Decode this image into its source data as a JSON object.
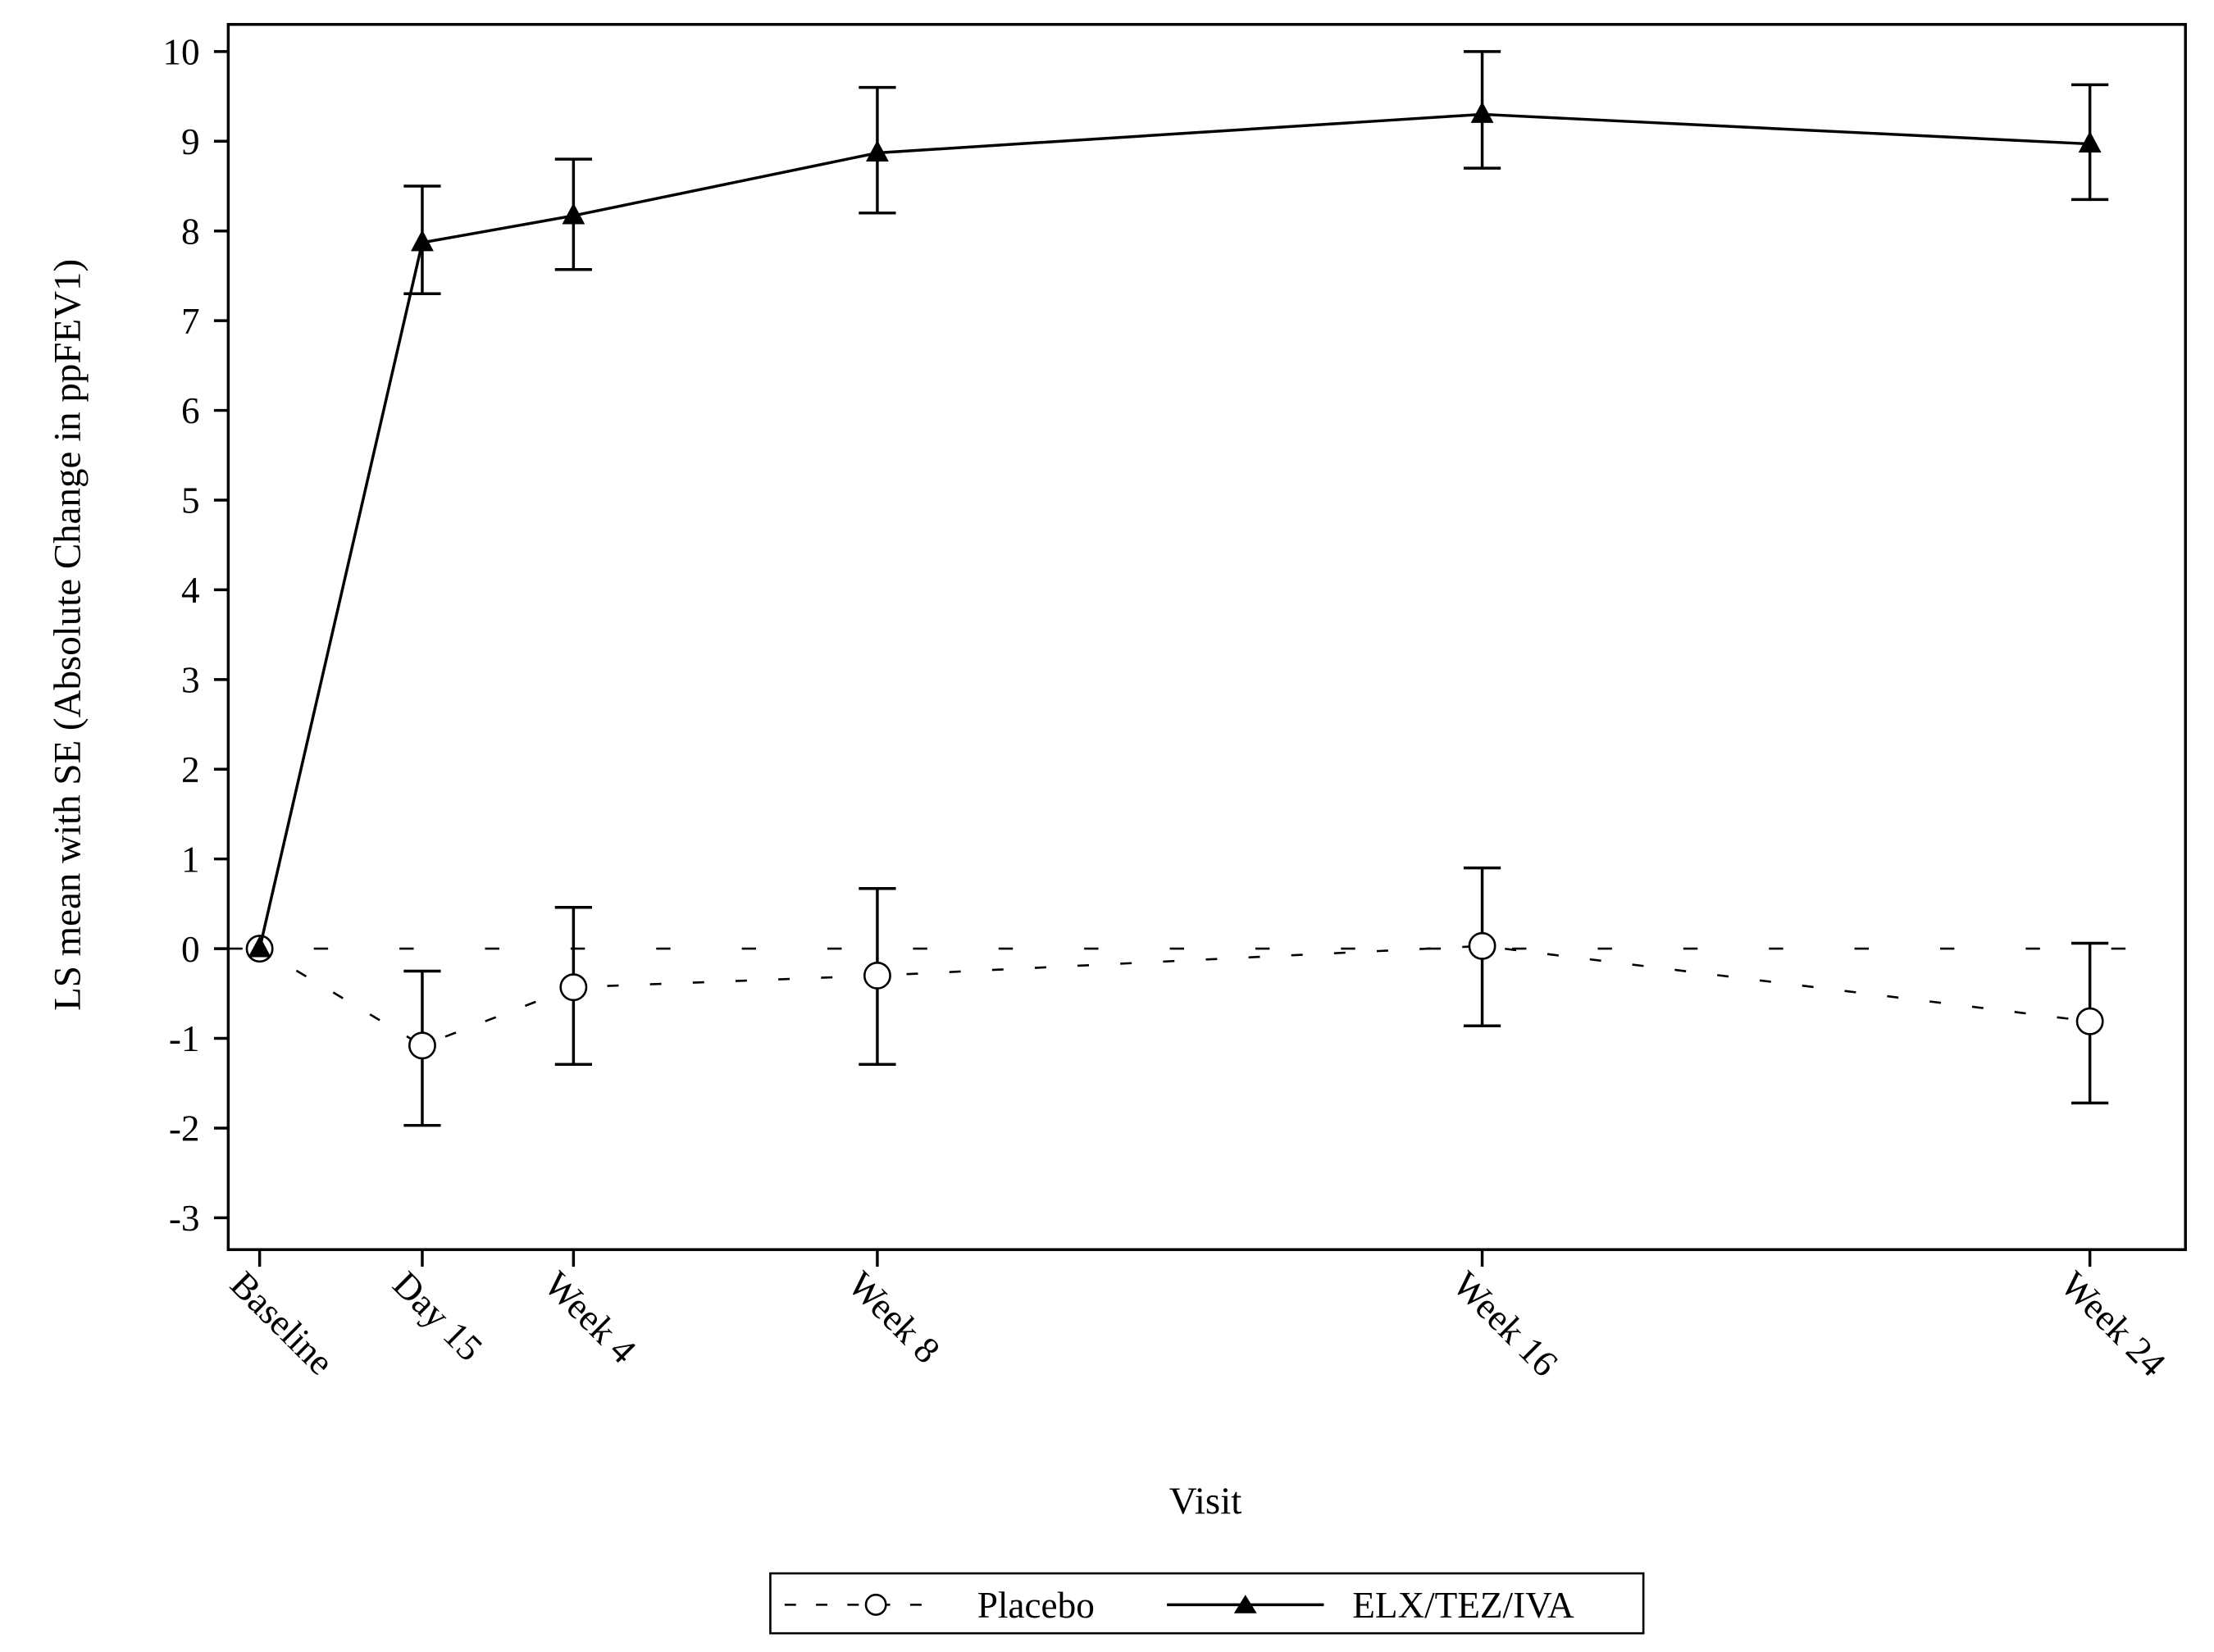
{
  "chart_data": {
    "type": "line",
    "xlabel": "Visit",
    "ylabel": "LS mean with SE (Absolute Change in ppFEV1)",
    "categories": [
      "Baseline",
      "Day 15",
      "Week 4",
      "Week 8",
      "Week 16",
      "Week 24"
    ],
    "ylim": [
      -3,
      10
    ],
    "yticks": [
      -3,
      -2,
      -1,
      0,
      1,
      2,
      3,
      4,
      5,
      6,
      7,
      8,
      9,
      10
    ],
    "reference_line_y": 0,
    "grid": false,
    "legend_position": "bottom",
    "series": [
      {
        "name": "Placebo",
        "line_style": "dashed",
        "marker": "open-circle",
        "values": [
          0,
          -1.08,
          -0.43,
          -0.3,
          0.03,
          -0.81
        ],
        "se_upper": [
          0,
          -0.25,
          0.46,
          0.67,
          0.9,
          0.06
        ],
        "se_lower": [
          0,
          -1.97,
          -1.29,
          -1.29,
          -0.86,
          -1.72
        ]
      },
      {
        "name": "ELX/TEZ/IVA",
        "line_style": "solid",
        "marker": "filled-triangle",
        "values": [
          0,
          7.87,
          8.17,
          8.87,
          9.3,
          8.97
        ],
        "se_upper": [
          0,
          8.5,
          8.8,
          9.6,
          10.0,
          9.63
        ],
        "se_lower": [
          0,
          7.3,
          7.57,
          8.2,
          8.7,
          8.35
        ]
      }
    ]
  }
}
